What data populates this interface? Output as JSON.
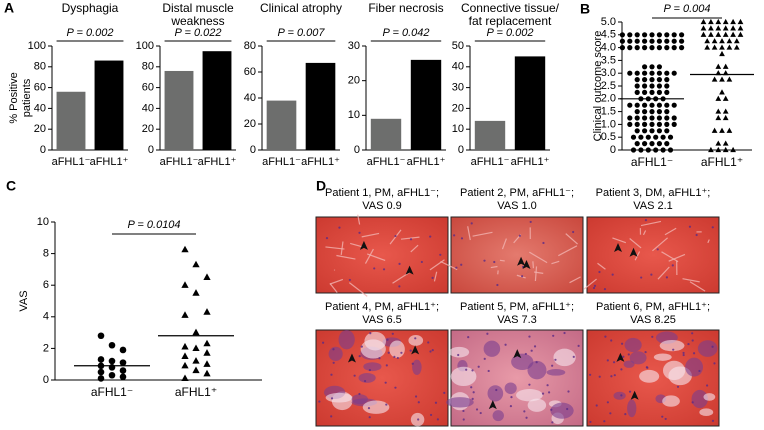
{
  "chart_data": [
    {
      "type": "bar",
      "panel": "A",
      "title": "Dysphagia",
      "ylabel": [
        "% Positive",
        "patients"
      ],
      "p_text": "P = 0.002",
      "categories": [
        "aFHL1⁻",
        "aFHL1⁺"
      ],
      "values": [
        56,
        86
      ],
      "colors": [
        "#6d6e6d",
        "#000000"
      ],
      "ylim": [
        0,
        100
      ],
      "yticks": [
        0,
        20,
        40,
        60,
        80,
        100
      ]
    },
    {
      "type": "bar",
      "title": [
        "Distal muscle",
        "weakness"
      ],
      "p_text": "P = 0.022",
      "categories": [
        "aFHL1⁻",
        "aFHL1⁺"
      ],
      "values": [
        76,
        95
      ],
      "colors": [
        "#6d6e6d",
        "#000000"
      ],
      "ylim": [
        0,
        100
      ],
      "yticks": [
        0,
        20,
        40,
        60,
        80,
        100
      ]
    },
    {
      "type": "bar",
      "title": "Clinical atrophy",
      "p_text": "P = 0.007",
      "categories": [
        "aFHL1⁻",
        "aFHL1⁺"
      ],
      "values": [
        38,
        67
      ],
      "colors": [
        "#6d6e6d",
        "#000000"
      ],
      "ylim": [
        0,
        80
      ],
      "yticks": [
        0,
        20,
        40,
        60,
        80
      ]
    },
    {
      "type": "bar",
      "title": "Fiber necrosis",
      "p_text": "P = 0.042",
      "categories": [
        "aFHL1⁻",
        "aFHL1⁺"
      ],
      "values": [
        9,
        26
      ],
      "colors": [
        "#6d6e6d",
        "#000000"
      ],
      "ylim": [
        0,
        30
      ],
      "yticks": [
        0,
        10,
        20,
        30
      ]
    },
    {
      "type": "bar",
      "title": [
        "Connective tissue/",
        "fat replacement"
      ],
      "p_text": "P = 0.002",
      "categories": [
        "aFHL1⁻",
        "aFHL1⁺"
      ],
      "values": [
        14,
        45
      ],
      "colors": [
        "#6d6e6d",
        "#000000"
      ],
      "ylim": [
        0,
        50
      ],
      "yticks": [
        0,
        10,
        20,
        30,
        40,
        50
      ]
    },
    {
      "type": "dot",
      "panel": "B",
      "ylabel": "Clinical outcome score",
      "p_text": "P = 0.004",
      "categories": [
        "aFHL1⁻",
        "aFHL1⁺"
      ],
      "markers": [
        "circle",
        "triangle"
      ],
      "color": "#000000",
      "values": [
        [
          4.5,
          4.5,
          4.5,
          4.5,
          4.5,
          4.5,
          4.5,
          4.5,
          4.5,
          4.25,
          4.25,
          4.25,
          4.25,
          4.25,
          4.25,
          4.25,
          4.25,
          4.25,
          4,
          4,
          4,
          4,
          4,
          4,
          4,
          4,
          4,
          3.25,
          3.25,
          3.25,
          3,
          3,
          3,
          3,
          3,
          3,
          3,
          2.75,
          2.75,
          2.75,
          2.75,
          2.75,
          2.5,
          2.5,
          2.5,
          2.5,
          2.5,
          2.25,
          2.25,
          2.25,
          2.25,
          2.25,
          2,
          2,
          2,
          2,
          1.75,
          1.75,
          1.75,
          1.75,
          1.75,
          1.75,
          1.75,
          1.5,
          1.5,
          1.5,
          1.5,
          1.5,
          1.25,
          1.25,
          1.25,
          1.25,
          1.25,
          1.25,
          1.25,
          1,
          1,
          1,
          1,
          1,
          1,
          1,
          0.75,
          0.75,
          0.75,
          0.75,
          0.75,
          0.5,
          0.5,
          0.5,
          0.5,
          0.5,
          0.5,
          0.25,
          0.25,
          0.25,
          0.25,
          0.25,
          0,
          0,
          0,
          0,
          0,
          0
        ],
        [
          5,
          5,
          5,
          5,
          5,
          5,
          4.75,
          4.75,
          4.75,
          4.75,
          4.75,
          4.75,
          4.5,
          4.5,
          4.5,
          4.5,
          4.5,
          4.5,
          4.25,
          4.25,
          4.25,
          4.25,
          4.25,
          4,
          4,
          4,
          4,
          4,
          3.75,
          3.25,
          3.25,
          3,
          3,
          2.75,
          2.75,
          2.75,
          2.25,
          2,
          2,
          1.5,
          1.5,
          1.25,
          1.25,
          0.75,
          0.75,
          0.75,
          0.25,
          0.25,
          0,
          0,
          0,
          0
        ]
      ],
      "centers": [
        2.0,
        2.95
      ],
      "ylim": [
        0,
        5
      ],
      "yticks": [
        0,
        0.5,
        {
          "value": 1,
          "label": "1.0"
        },
        1.5,
        {
          "value": 2,
          "label": "2.0"
        },
        2.5,
        {
          "value": 3,
          "label": "3.0"
        },
        3.5,
        {
          "value": 4,
          "label": "4.0"
        },
        4.5,
        {
          "value": 5,
          "label": "5.0"
        }
      ]
    },
    {
      "type": "dot",
      "panel": "C",
      "ylabel": "VAS",
      "p_text": "P = 0.0104",
      "categories": [
        "aFHL1⁻",
        "aFHL1⁺"
      ],
      "markers": [
        "circle",
        "triangle"
      ],
      "color": "#000000",
      "values": [
        [
          2.8,
          2.2,
          1.9,
          1.3,
          1.2,
          1.1,
          0.9,
          0.8,
          0.6,
          0.5,
          0.3,
          0.2,
          0.1
        ],
        [
          8.25,
          7.3,
          6.5,
          6.0,
          5.5,
          4.3,
          4.1,
          3.0,
          2.3,
          2.1,
          2.0,
          1.7,
          1.5,
          1.2,
          1.0,
          0.9,
          0.6,
          0.4,
          0.1
        ]
      ],
      "centers": [
        0.9,
        2.8
      ],
      "ylim": [
        0,
        10
      ],
      "yticks": [
        0,
        2,
        4,
        6,
        8,
        10
      ]
    }
  ],
  "images": {
    "panel": "D",
    "items": [
      {
        "caption": [
          "Patient 1, PM, aFHL1⁻;",
          "VAS 0.9"
        ]
      },
      {
        "caption": [
          "Patient 2, PM, aFHL1⁻;",
          "VAS 1.0"
        ]
      },
      {
        "caption": [
          "Patient 3, DM, aFHL1⁺;",
          "VAS 2.1"
        ]
      },
      {
        "caption": [
          "Patient 4, PM, aFHL1⁺;",
          "VAS 6.5"
        ]
      },
      {
        "caption": [
          "Patient 5, PM, aFHL1⁺;",
          "VAS 7.3"
        ]
      },
      {
        "caption": [
          "Patient 6, PM, aFHL1⁺;",
          "VAS 8.25"
        ]
      }
    ]
  }
}
